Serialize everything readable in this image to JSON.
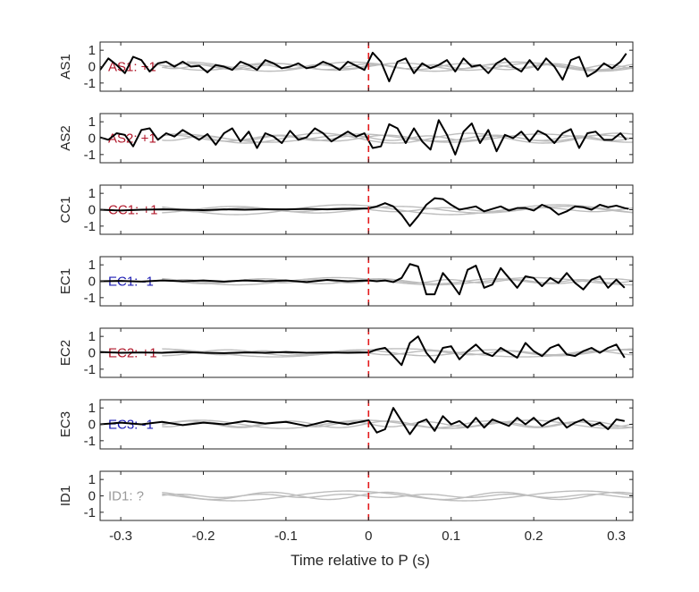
{
  "chart_data": {
    "type": "line",
    "xlabel": "Time relative to P (s)",
    "xlim": [
      -0.325,
      0.32
    ],
    "xticks": [
      -0.3,
      -0.2,
      -0.1,
      0,
      0.1,
      0.2,
      0.3
    ],
    "xtick_labels": [
      "-0.3",
      "-0.2",
      "-0.1",
      "0",
      "0.1",
      "0.2",
      "0.3"
    ],
    "ylim": [
      -1.5,
      1.5
    ],
    "yticks": [
      1,
      0,
      -1
    ],
    "ytick_labels": [
      "1",
      "0",
      "-1"
    ],
    "p_marker_time": 0,
    "colors": {
      "trace": "#000000",
      "background_traces": "#bdbdbd",
      "p_marker": "#e41a1c",
      "positive": "#b2182b",
      "negative": "#1f1fb4",
      "unknown": "#9a9a9a"
    },
    "panels": [
      {
        "name": "AS1",
        "annotation": "AS1: +1",
        "polarity": "positive",
        "trace": {
          "x": [
            -0.325,
            -0.315,
            -0.305,
            -0.295,
            -0.285,
            -0.275,
            -0.265,
            -0.255,
            -0.245,
            -0.235,
            -0.225,
            -0.215,
            -0.205,
            -0.195,
            -0.185,
            -0.175,
            -0.165,
            -0.155,
            -0.145,
            -0.135,
            -0.125,
            -0.115,
            -0.105,
            -0.095,
            -0.085,
            -0.075,
            -0.065,
            -0.055,
            -0.045,
            -0.035,
            -0.025,
            -0.015,
            -0.005,
            0.005,
            0.015,
            0.025,
            0.035,
            0.045,
            0.055,
            0.065,
            0.075,
            0.085,
            0.095,
            0.105,
            0.115,
            0.125,
            0.135,
            0.145,
            0.155,
            0.165,
            0.175,
            0.185,
            0.195,
            0.205,
            0.215,
            0.225,
            0.235,
            0.245,
            0.255,
            0.265,
            0.275,
            0.285,
            0.295,
            0.305,
            0.312
          ],
          "y": [
            -0.2,
            0.5,
            0.1,
            -0.4,
            0.6,
            0.4,
            -0.3,
            0.2,
            0.3,
            0,
            0.3,
            0,
            0.05,
            -0.35,
            0.1,
            0,
            -0.2,
            0.3,
            0.1,
            -0.2,
            0.4,
            0.2,
            -0.1,
            0,
            0.2,
            -0.1,
            0,
            0.3,
            0.1,
            -0.2,
            0.3,
            0.05,
            -0.2,
            0.85,
            0.3,
            -0.9,
            0.3,
            0.5,
            -0.4,
            0.2,
            -0.1,
            0.1,
            0.4,
            -0.3,
            0.5,
            0,
            0.1,
            -0.4,
            0.2,
            0.5,
            0,
            -0.3,
            0.4,
            -0.2,
            0.5,
            0,
            -0.8,
            0.4,
            0.6,
            -0.6,
            -0.3,
            0.2,
            -0.1,
            0.3,
            0.8
          ]
        },
        "background": [
          {
            "amplitude": 0.22,
            "period": 0.16,
            "phase": 0.0,
            "start": -0.26
          },
          {
            "amplitude": 0.18,
            "period": 0.11,
            "phase": 1.4,
            "start": -0.25
          },
          {
            "amplitude": 0.28,
            "period": 0.2,
            "phase": 2.2,
            "start": -0.22
          },
          {
            "amplitude": 0.12,
            "period": 0.07,
            "phase": 0.7,
            "start": -0.25
          }
        ]
      },
      {
        "name": "AS2",
        "annotation": "AS2: +1",
        "polarity": "positive",
        "trace": {
          "x": [
            -0.325,
            -0.315,
            -0.305,
            -0.295,
            -0.285,
            -0.275,
            -0.265,
            -0.255,
            -0.245,
            -0.235,
            -0.225,
            -0.215,
            -0.205,
            -0.195,
            -0.185,
            -0.175,
            -0.165,
            -0.155,
            -0.145,
            -0.135,
            -0.125,
            -0.115,
            -0.105,
            -0.095,
            -0.085,
            -0.075,
            -0.065,
            -0.055,
            -0.045,
            -0.035,
            -0.025,
            -0.015,
            -0.005,
            0.005,
            0.015,
            0.025,
            0.035,
            0.045,
            0.055,
            0.065,
            0.075,
            0.085,
            0.095,
            0.105,
            0.115,
            0.125,
            0.135,
            0.145,
            0.155,
            0.165,
            0.175,
            0.185,
            0.195,
            0.205,
            0.215,
            0.225,
            0.235,
            0.245,
            0.255,
            0.265,
            0.275,
            0.285,
            0.295,
            0.305,
            0.312
          ],
          "y": [
            0.05,
            -0.1,
            0.3,
            0.2,
            -0.5,
            0.5,
            0.6,
            -0.1,
            0.3,
            0.1,
            0.5,
            0.2,
            -0.1,
            0.25,
            -0.4,
            0.3,
            0.6,
            -0.2,
            0.4,
            -0.6,
            0.3,
            0.1,
            -0.3,
            0.45,
            -0.1,
            0.05,
            0.6,
            0.3,
            -0.2,
            0.1,
            0.4,
            0.1,
            0.3,
            -0.6,
            -0.5,
            0.85,
            0.6,
            -0.3,
            0.6,
            -0.2,
            -0.7,
            1.1,
            0.2,
            -1,
            0.4,
            0.9,
            -0.3,
            0.5,
            -0.8,
            0.2,
            0,
            0.4,
            -0.2,
            0.45,
            0.2,
            -0.3,
            0.3,
            0.55,
            -0.6,
            0.3,
            0.4,
            -0.1,
            -0.1,
            0.3,
            -0.1
          ]
        },
        "background": [
          {
            "amplitude": 0.18,
            "period": 0.13,
            "phase": 0.5,
            "start": -0.25
          },
          {
            "amplitude": 0.25,
            "period": 0.22,
            "phase": 1.9,
            "start": -0.24
          },
          {
            "amplitude": 0.14,
            "period": 0.09,
            "phase": 2.8,
            "start": -0.25
          },
          {
            "amplitude": 0.3,
            "period": 0.18,
            "phase": 3.6,
            "start": -0.2
          }
        ]
      },
      {
        "name": "CC1",
        "annotation": "CC1: +1",
        "polarity": "positive",
        "trace": {
          "x": [
            -0.325,
            -0.3,
            -0.275,
            -0.25,
            -0.225,
            -0.2,
            -0.175,
            -0.15,
            -0.125,
            -0.1,
            -0.075,
            -0.05,
            -0.025,
            0,
            0.01,
            0.02,
            0.03,
            0.04,
            0.05,
            0.06,
            0.07,
            0.08,
            0.09,
            0.1,
            0.11,
            0.12,
            0.13,
            0.14,
            0.15,
            0.16,
            0.17,
            0.18,
            0.19,
            0.2,
            0.21,
            0.22,
            0.23,
            0.24,
            0.25,
            0.26,
            0.27,
            0.28,
            0.29,
            0.3,
            0.31,
            0.315
          ],
          "y": [
            0,
            -0.05,
            0,
            0.02,
            0,
            -0.03,
            0.02,
            0,
            0.03,
            0.02,
            0.05,
            0.02,
            0.05,
            0.08,
            0.2,
            0.4,
            0.2,
            -0.3,
            -1,
            -0.4,
            0.3,
            0.7,
            0.65,
            0.3,
            0,
            0.1,
            0.2,
            -0.1,
            0.05,
            0.2,
            -0.05,
            0.1,
            0.1,
            -0.05,
            0.3,
            0.1,
            -0.3,
            -0.1,
            0.2,
            0.15,
            0,
            0.3,
            0.15,
            0.25,
            0.1,
            0.05
          ]
        },
        "background": [
          {
            "amplitude": 0.2,
            "period": 0.2,
            "phase": 0.4,
            "start": -0.25
          },
          {
            "amplitude": 0.3,
            "period": 0.26,
            "phase": 2.3,
            "start": -0.25
          },
          {
            "amplitude": 0.12,
            "period": 0.12,
            "phase": 3.0,
            "start": -0.25
          }
        ]
      },
      {
        "name": "EC1",
        "annotation": "EC1: -1",
        "polarity": "negative",
        "trace": {
          "x": [
            -0.325,
            -0.3,
            -0.275,
            -0.25,
            -0.225,
            -0.2,
            -0.175,
            -0.15,
            -0.125,
            -0.1,
            -0.075,
            -0.05,
            -0.025,
            0,
            0.01,
            0.02,
            0.03,
            0.04,
            0.05,
            0.06,
            0.07,
            0.08,
            0.09,
            0.1,
            0.11,
            0.12,
            0.13,
            0.14,
            0.15,
            0.16,
            0.17,
            0.18,
            0.19,
            0.2,
            0.21,
            0.22,
            0.23,
            0.24,
            0.25,
            0.26,
            0.27,
            0.28,
            0.29,
            0.3,
            0.31
          ],
          "y": [
            0,
            0.02,
            -0.02,
            0.05,
            0,
            0.05,
            -0.02,
            0.05,
            0,
            0.05,
            -0.05,
            0.08,
            0,
            0.05,
            0,
            0.05,
            -0.05,
            0.2,
            1.05,
            0.9,
            -0.8,
            -0.8,
            0.5,
            -0.1,
            -0.8,
            0.7,
            0.95,
            -0.4,
            -0.2,
            0.8,
            0.2,
            -0.4,
            0.3,
            0.2,
            -0.3,
            0.2,
            -0.1,
            0.5,
            -0.1,
            -0.5,
            0.1,
            0.3,
            -0.4,
            0.1,
            -0.4
          ]
        },
        "background": [
          {
            "amplitude": 0.15,
            "period": 0.14,
            "phase": 1.0,
            "start": -0.25
          },
          {
            "amplitude": 0.22,
            "period": 0.24,
            "phase": 2.6,
            "start": -0.25
          },
          {
            "amplitude": 0.1,
            "period": 0.08,
            "phase": 0.2,
            "start": -0.24
          }
        ]
      },
      {
        "name": "EC2",
        "annotation": "EC2: +1",
        "polarity": "positive",
        "trace": {
          "x": [
            -0.325,
            -0.3,
            -0.275,
            -0.25,
            -0.225,
            -0.2,
            -0.175,
            -0.15,
            -0.125,
            -0.1,
            -0.075,
            -0.05,
            -0.025,
            0,
            0.01,
            0.02,
            0.03,
            0.04,
            0.05,
            0.06,
            0.07,
            0.08,
            0.09,
            0.1,
            0.11,
            0.12,
            0.13,
            0.14,
            0.15,
            0.16,
            0.17,
            0.18,
            0.19,
            0.2,
            0.21,
            0.22,
            0.23,
            0.24,
            0.25,
            0.26,
            0.27,
            0.28,
            0.29,
            0.3,
            0.31
          ],
          "y": [
            0.05,
            0,
            0.02,
            0,
            0.05,
            0,
            -0.02,
            0.02,
            0,
            0.05,
            0,
            0.02,
            0,
            0.02,
            0.2,
            0.3,
            -0.2,
            -0.75,
            0.6,
            1,
            0,
            -0.6,
            0.3,
            0.4,
            -0.4,
            0.1,
            0.5,
            0,
            -0.2,
            0.3,
            0,
            -0.3,
            0.6,
            0.1,
            -0.2,
            0.3,
            0.5,
            -0.1,
            -0.2,
            0.1,
            0.3,
            0,
            0.3,
            0.5,
            -0.3
          ]
        },
        "background": [
          {
            "amplitude": 0.25,
            "period": 0.3,
            "phase": 0.8,
            "start": -0.25
          },
          {
            "amplitude": 0.18,
            "period": 0.16,
            "phase": 2.0,
            "start": -0.25
          },
          {
            "amplitude": 0.12,
            "period": 0.1,
            "phase": 3.3,
            "start": -0.25
          }
        ]
      },
      {
        "name": "EC3",
        "annotation": "EC3: -1",
        "polarity": "negative",
        "trace": {
          "x": [
            -0.325,
            -0.3,
            -0.275,
            -0.25,
            -0.225,
            -0.2,
            -0.175,
            -0.15,
            -0.125,
            -0.1,
            -0.075,
            -0.05,
            -0.025,
            0,
            0.01,
            0.02,
            0.03,
            0.04,
            0.05,
            0.06,
            0.07,
            0.08,
            0.09,
            0.1,
            0.11,
            0.12,
            0.13,
            0.14,
            0.15,
            0.16,
            0.17,
            0.18,
            0.19,
            0.2,
            0.21,
            0.22,
            0.23,
            0.24,
            0.25,
            0.26,
            0.27,
            0.28,
            0.29,
            0.3,
            0.31
          ],
          "y": [
            0,
            0.1,
            0,
            0.15,
            -0.05,
            0.1,
            0,
            0.2,
            0.05,
            0.15,
            -0.1,
            0.2,
            0,
            0.25,
            -0.5,
            -0.3,
            1,
            0.2,
            -0.6,
            0.1,
            0.3,
            -0.4,
            0.5,
            0,
            0.2,
            -0.2,
            0.4,
            -0.2,
            0.3,
            0.1,
            -0.1,
            0.4,
            0,
            0.4,
            -0.1,
            0.2,
            0.4,
            -0.2,
            0.1,
            0.3,
            -0.1,
            0.1,
            -0.3,
            0.3,
            0.2
          ]
        },
        "background": [
          {
            "amplitude": 0.2,
            "period": 0.12,
            "phase": 0.3,
            "start": -0.25
          },
          {
            "amplitude": 0.25,
            "period": 0.2,
            "phase": 1.7,
            "start": -0.25
          },
          {
            "amplitude": 0.15,
            "period": 0.09,
            "phase": 2.9,
            "start": -0.25
          }
        ]
      },
      {
        "name": "ID1",
        "annotation": "ID1: ?",
        "polarity": "unknown",
        "trace": null,
        "background": [
          {
            "amplitude": 0.22,
            "period": 0.14,
            "phase": 0.6,
            "start": -0.25
          },
          {
            "amplitude": 0.3,
            "period": 0.28,
            "phase": 2.1,
            "start": -0.25
          },
          {
            "amplitude": 0.1,
            "period": 0.1,
            "phase": 3.4,
            "start": -0.25
          }
        ]
      }
    ]
  }
}
